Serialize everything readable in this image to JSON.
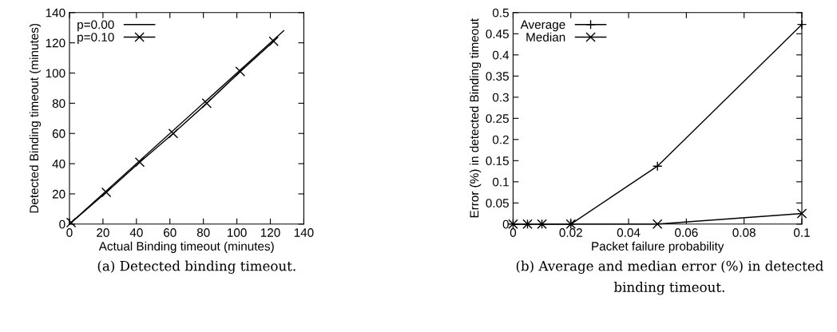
{
  "chart_data": [
    {
      "type": "line",
      "xlabel": "Actual Binding timeout (minutes)",
      "ylabel": "Detected Binding timeout (minutes)",
      "xlim": [
        0,
        140
      ],
      "ylim": [
        0,
        140
      ],
      "xticks": [
        0,
        20,
        40,
        60,
        80,
        100,
        120,
        140
      ],
      "yticks": [
        0,
        20,
        40,
        60,
        80,
        100,
        120,
        140
      ],
      "grid": false,
      "legend": "top left",
      "line_style": "solid",
      "series": [
        {
          "name": "p=0.00",
          "color": "#000000",
          "marker": "none",
          "x": [
            0,
            128
          ],
          "values": [
            0,
            128
          ]
        },
        {
          "name": "p=0.10",
          "color": "#000000",
          "marker": "cross",
          "x": [
            1,
            22,
            42,
            62,
            82,
            102,
            122
          ],
          "values": [
            1,
            21,
            41,
            60,
            80,
            101,
            121
          ]
        }
      ],
      "annotations": [
        "(a) Detected binding timeout."
      ]
    },
    {
      "type": "line",
      "xlabel": "Packet failure probability",
      "ylabel": "Error (%) in detected Binding timeout",
      "xlim": [
        0,
        0.1
      ],
      "ylim": [
        0,
        0.5
      ],
      "xticks": [
        0,
        0.02,
        0.04,
        0.06,
        0.08,
        0.1
      ],
      "yticks": [
        0,
        0.05,
        0.1,
        0.15,
        0.2,
        0.25,
        0.3,
        0.35,
        0.4,
        0.45,
        0.5
      ],
      "grid": false,
      "legend": "top left",
      "line_style": "solid",
      "series": [
        {
          "name": "Average",
          "color": "#000000",
          "marker": "plus",
          "x": [
            0,
            0.005,
            0.01,
            0.02,
            0.05,
            0.1
          ],
          "values": [
            0,
            0,
            0,
            0,
            0.137,
            0.472
          ]
        },
        {
          "name": "Median",
          "color": "#000000",
          "marker": "cross",
          "x": [
            0,
            0.005,
            0.01,
            0.02,
            0.05,
            0.1
          ],
          "values": [
            0,
            0,
            0,
            0,
            0,
            0.025
          ]
        }
      ],
      "annotations": [
        "(b) Average and median error (%) in detected binding timeout."
      ]
    }
  ]
}
